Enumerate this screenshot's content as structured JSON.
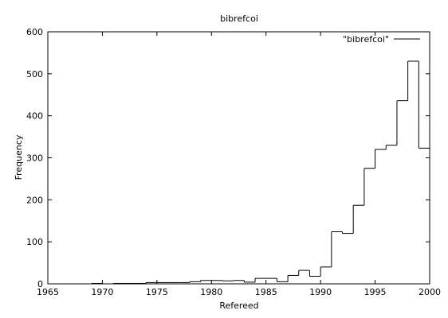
{
  "chart_data": {
    "type": "bar",
    "style": "step-histogram",
    "title": "bibrefcoi",
    "xlabel": "Refereed",
    "ylabel": "Frequency",
    "xlim": [
      1965,
      2000
    ],
    "ylim": [
      0,
      600
    ],
    "xticks": [
      1965,
      1970,
      1975,
      1980,
      1985,
      1990,
      1995,
      2000
    ],
    "yticks": [
      0,
      100,
      200,
      300,
      400,
      500,
      600
    ],
    "grid": false,
    "legend_position": "top-right",
    "series": [
      {
        "name": "\"bibrefcoi\"",
        "color": "#000000",
        "x": [
          1969,
          1970,
          1971,
          1972,
          1973,
          1974,
          1975,
          1976,
          1977,
          1978,
          1979,
          1980,
          1981,
          1982,
          1983,
          1984,
          1985,
          1986,
          1987,
          1988,
          1989,
          1990,
          1991,
          1992,
          1993,
          1994,
          1995,
          1996,
          1997,
          1998,
          1999
        ],
        "values": [
          1,
          0,
          1,
          1,
          1,
          3,
          3,
          3,
          3,
          5,
          8,
          8,
          7,
          8,
          4,
          13,
          13,
          5,
          20,
          32,
          18,
          40,
          124,
          120,
          187,
          275,
          320,
          330,
          436,
          530,
          323
        ]
      }
    ]
  }
}
